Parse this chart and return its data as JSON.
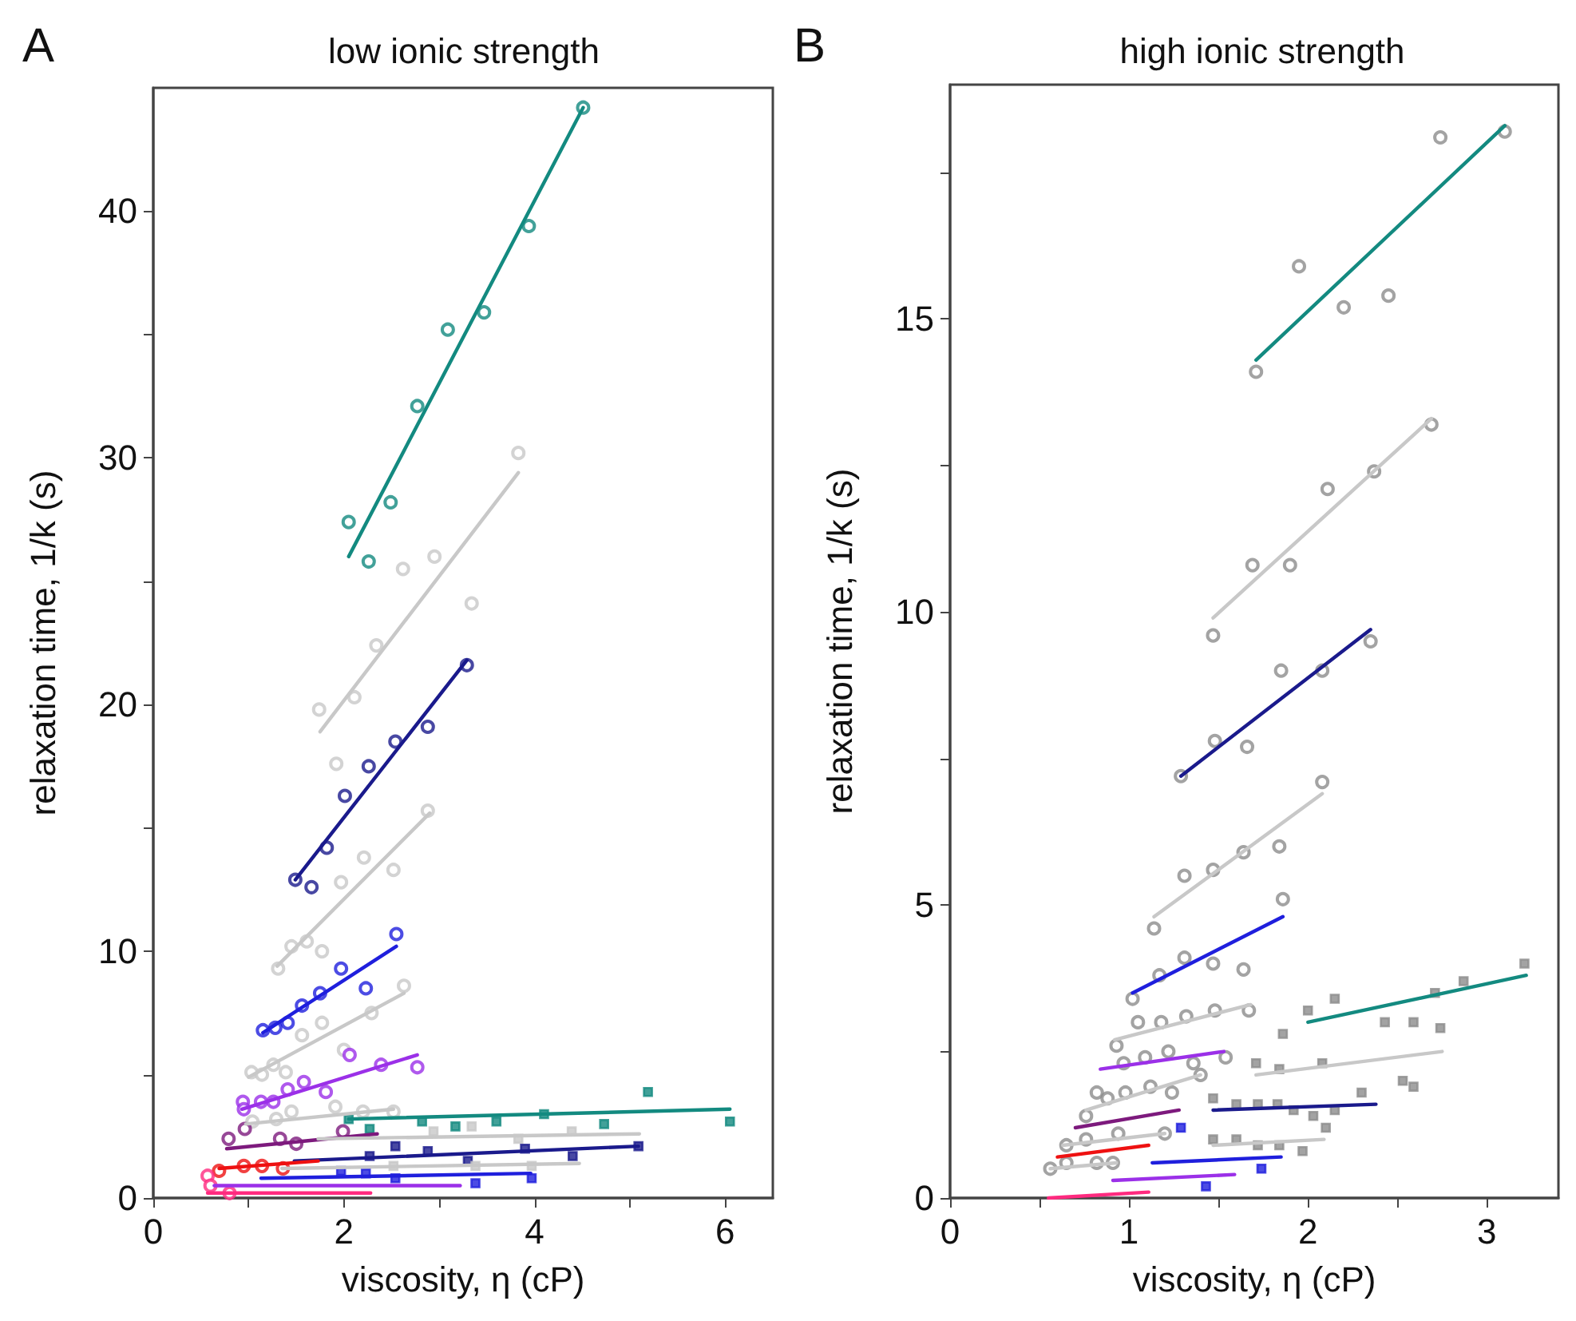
{
  "chart_data": [
    {
      "type": "scatter",
      "title": "low ionic strength",
      "xlabel": "viscosity, η (cP)",
      "ylabel": "relaxation time, 1/k (s)",
      "annotations": [
        "A"
      ],
      "marker": "circle",
      "grid": false,
      "xlim": [
        0,
        6.5
      ],
      "ylim": [
        0,
        45
      ],
      "xticks": [
        0,
        {
          "value": 1,
          "label": null
        },
        2,
        {
          "value": 3,
          "label": null
        },
        4,
        {
          "value": 5,
          "label": null
        },
        6
      ],
      "yticks": [
        0,
        {
          "value": 5,
          "label": null
        },
        10,
        {
          "value": 15,
          "label": null
        },
        20,
        {
          "value": 25,
          "label": null
        },
        30,
        {
          "value": 35,
          "label": null
        },
        40
      ],
      "series": [
        {
          "color": "#138a80",
          "x": [
            2.05,
            2.26,
            2.49,
            2.77,
            3.09,
            3.47,
            3.94,
            4.51
          ],
          "values": [
            27.4,
            25.8,
            28.2,
            32.1,
            35.2,
            35.9,
            39.4,
            44.2
          ]
        },
        {
          "type": "line",
          "marker": "none",
          "color": "#138a80",
          "x": [
            2.05,
            4.51
          ],
          "values": [
            26.0,
            44.2
          ]
        },
        {
          "color": "#c8c8c8",
          "x": [
            1.74,
            1.92,
            2.11,
            2.34,
            2.62,
            2.95,
            3.34,
            3.83
          ],
          "values": [
            19.8,
            17.6,
            20.3,
            22.4,
            25.5,
            26.0,
            24.1,
            30.2
          ]
        },
        {
          "type": "line",
          "marker": "none",
          "color": "#c8c8c8",
          "x": [
            1.75,
            3.83
          ],
          "values": [
            18.9,
            29.4
          ]
        },
        {
          "color": "#1a1a8c",
          "x": [
            1.49,
            1.66,
            1.82,
            2.01,
            2.26,
            2.54,
            2.88,
            3.29
          ],
          "values": [
            12.9,
            12.6,
            14.2,
            16.3,
            17.5,
            18.5,
            19.1,
            21.6
          ]
        },
        {
          "type": "line",
          "marker": "none",
          "color": "#1a1a8c",
          "x": [
            1.49,
            3.29
          ],
          "values": [
            12.9,
            21.8
          ]
        },
        {
          "color": "#c8c8c8",
          "x": [
            1.31,
            1.45,
            1.61,
            1.77,
            1.97,
            2.21,
            2.52,
            2.88
          ],
          "values": [
            9.3,
            10.2,
            10.4,
            10.0,
            12.8,
            13.8,
            13.3,
            15.7
          ]
        },
        {
          "type": "line",
          "marker": "none",
          "color": "#c8c8c8",
          "x": [
            1.3,
            2.9
          ],
          "values": [
            9.4,
            15.6
          ]
        },
        {
          "color": "#1f1fdd",
          "x": [
            1.15,
            1.28,
            1.41,
            1.56,
            1.75,
            1.97,
            2.23,
            2.55
          ],
          "values": [
            6.8,
            6.9,
            7.1,
            7.8,
            8.3,
            9.3,
            8.5,
            10.7
          ]
        },
        {
          "type": "line",
          "marker": "none",
          "color": "#1f1fdd",
          "x": [
            1.15,
            2.55
          ],
          "values": [
            6.7,
            10.2
          ]
        },
        {
          "color": "#c8c8c8",
          "x": [
            1.03,
            1.14,
            1.26,
            1.39,
            1.56,
            1.77,
            2.0,
            2.29,
            2.63
          ],
          "values": [
            5.1,
            5.0,
            5.4,
            5.1,
            6.6,
            7.1,
            6.0,
            7.5,
            8.6
          ]
        },
        {
          "type": "line",
          "marker": "none",
          "color": "#c8c8c8",
          "x": [
            1.0,
            2.63
          ],
          "values": [
            4.9,
            8.3
          ]
        },
        {
          "color": "#9b30e8",
          "x": [
            0.94,
            0.95,
            1.13,
            1.26,
            1.41,
            1.58,
            1.81,
            2.06,
            2.39,
            2.77
          ],
          "values": [
            3.9,
            3.6,
            3.9,
            3.9,
            4.4,
            4.7,
            4.3,
            5.8,
            5.4,
            5.3
          ]
        },
        {
          "type": "line",
          "marker": "none",
          "color": "#9b30e8",
          "x": [
            0.93,
            2.77
          ],
          "values": [
            3.6,
            5.8
          ]
        },
        {
          "color": "#c8c8c8",
          "x": [
            1.04,
            1.29,
            1.45,
            1.91,
            2.2,
            2.52
          ],
          "values": [
            3.1,
            3.2,
            3.5,
            3.7,
            3.5,
            3.5
          ]
        },
        {
          "type": "line",
          "marker": "none",
          "color": "#c8c8c8",
          "x": [
            0.97,
            2.52
          ],
          "values": [
            3.0,
            3.6
          ]
        },
        {
          "marker": "square",
          "color": "#138a80",
          "x": [
            2.05,
            2.27,
            2.82,
            3.17,
            3.6,
            4.1,
            4.73,
            5.19,
            6.05
          ],
          "values": [
            3.2,
            2.8,
            3.1,
            2.9,
            3.1,
            3.4,
            3.0,
            4.3,
            3.1
          ]
        },
        {
          "type": "line",
          "marker": "none",
          "color": "#138a80",
          "x": [
            2.05,
            6.05
          ],
          "values": [
            3.2,
            3.6
          ]
        },
        {
          "color": "#7d1a7d",
          "x": [
            0.79,
            0.96,
            1.33,
            1.5,
            1.99
          ],
          "values": [
            2.4,
            2.8,
            2.4,
            2.2,
            2.7
          ]
        },
        {
          "type": "line",
          "marker": "none",
          "color": "#7d1a7d",
          "x": [
            0.77,
            2.35
          ],
          "values": [
            2.0,
            2.6
          ]
        },
        {
          "marker": "square",
          "color": "#c8c8c8",
          "x": [
            2.94,
            3.34,
            3.83,
            4.39
          ],
          "values": [
            2.7,
            2.9,
            2.4,
            2.7
          ]
        },
        {
          "type": "line",
          "marker": "none",
          "color": "#c8c8c8",
          "x": [
            1.73,
            5.1
          ],
          "values": [
            2.4,
            2.6
          ]
        },
        {
          "marker": "square",
          "color": "#1a1a8c",
          "x": [
            2.27,
            2.54,
            2.88,
            3.3,
            3.9,
            4.4,
            5.09
          ],
          "values": [
            1.7,
            2.1,
            1.9,
            1.5,
            2.0,
            1.7,
            2.1
          ]
        },
        {
          "type": "line",
          "marker": "none",
          "color": "#1a1a8c",
          "x": [
            1.48,
            5.09
          ],
          "values": [
            1.5,
            2.1
          ]
        },
        {
          "color": "#ee1111",
          "x": [
            0.69,
            0.87,
            0.95,
            1.14,
            1.36
          ],
          "values": [
            1.1,
            null,
            1.3,
            1.3,
            1.2
          ]
        },
        {
          "type": "line",
          "marker": "none",
          "color": "#ee1111",
          "x": [
            0.69,
            1.73
          ],
          "values": [
            1.2,
            1.5
          ]
        },
        {
          "marker": "square",
          "color": "#c8c8c8",
          "x": [
            2.52,
            3.38,
            3.97
          ],
          "values": [
            1.3,
            1.3,
            1.3
          ]
        },
        {
          "type": "line",
          "marker": "none",
          "color": "#c8c8c8",
          "x": [
            1.35,
            4.47
          ],
          "values": [
            1.2,
            1.4
          ]
        },
        {
          "marker": "square",
          "color": "#1f1fdd",
          "x": [
            1.97,
            2.23,
            2.54,
            3.38,
            3.97
          ],
          "values": [
            1.1,
            1.0,
            0.8,
            0.6,
            0.8
          ]
        },
        {
          "type": "line",
          "marker": "none",
          "color": "#1f1fdd",
          "x": [
            1.13,
            3.96
          ],
          "values": [
            0.8,
            1.0
          ]
        },
        {
          "type": "line",
          "marker": "none",
          "color": "#9b30e8",
          "x": [
            0.64,
            3.22
          ],
          "values": [
            0.5,
            0.5
          ]
        },
        {
          "color": "#ff2a7f",
          "x": [
            0.57,
            0.6,
            0.7,
            0.8
          ],
          "values": [
            0.9,
            0.5,
            null,
            0.2
          ]
        },
        {
          "type": "line",
          "marker": "none",
          "color": "#ff2a7f",
          "x": [
            0.57,
            2.28
          ],
          "values": [
            0.2,
            0.2
          ]
        }
      ]
    },
    {
      "type": "scatter",
      "title": "high ionic strength",
      "xlabel": "viscosity, η (cP)",
      "ylabel": "relaxation time, 1/k (s)",
      "annotations": [
        "B"
      ],
      "marker": "circle",
      "grid": false,
      "xlim": [
        0,
        3.4
      ],
      "ylim": [
        0,
        19
      ],
      "xticks": [
        0,
        {
          "value": 0.5,
          "label": null
        },
        1,
        {
          "value": 1.5,
          "label": null
        },
        2,
        {
          "value": 2.5,
          "label": null
        },
        3
      ],
      "yticks": [
        0,
        {
          "value": 2.5,
          "label": null
        },
        5,
        {
          "value": 7.5,
          "label": null
        },
        10,
        {
          "value": 12.5,
          "label": null
        },
        15,
        {
          "value": 17.5,
          "label": null
        }
      ],
      "series": [
        {
          "color": "#8c8c8c",
          "x": [
            1.71,
            1.95,
            2.2,
            2.45,
            2.74,
            3.1
          ],
          "values": [
            14.1,
            15.9,
            15.2,
            15.4,
            18.1,
            18.2
          ]
        },
        {
          "type": "line",
          "marker": "none",
          "color": "#138a80",
          "x": [
            1.71,
            3.1
          ],
          "values": [
            14.3,
            18.3
          ]
        },
        {
          "color": "#8c8c8c",
          "x": [
            1.47,
            1.69,
            1.9,
            2.11,
            2.37,
            2.69
          ],
          "values": [
            9.6,
            10.8,
            10.8,
            12.1,
            12.4,
            13.2
          ]
        },
        {
          "type": "line",
          "marker": "none",
          "color": "#c8c8c8",
          "x": [
            1.47,
            2.69
          ],
          "values": [
            9.9,
            13.3
          ]
        },
        {
          "color": "#8c8c8c",
          "x": [
            1.29,
            1.48,
            1.66,
            1.85,
            2.08,
            2.35
          ],
          "values": [
            7.2,
            7.8,
            7.7,
            9.0,
            9.0,
            9.5
          ]
        },
        {
          "type": "line",
          "marker": "none",
          "color": "#1a1a8c",
          "x": [
            1.29,
            2.35
          ],
          "values": [
            7.2,
            9.7
          ]
        },
        {
          "color": "#8c8c8c",
          "x": [
            1.14,
            1.31,
            1.47,
            1.64,
            1.84,
            2.08
          ],
          "values": [
            4.6,
            5.5,
            5.6,
            5.9,
            6.0,
            7.1
          ]
        },
        {
          "type": "line",
          "marker": "none",
          "color": "#c8c8c8",
          "x": [
            1.14,
            2.08
          ],
          "values": [
            4.8,
            6.9
          ]
        },
        {
          "color": "#8c8c8c",
          "x": [
            1.02,
            1.17,
            1.31,
            1.47,
            1.64,
            1.86
          ],
          "values": [
            3.4,
            3.8,
            4.1,
            4.0,
            3.9,
            5.1
          ]
        },
        {
          "type": "line",
          "marker": "none",
          "color": "#1f1fdd",
          "x": [
            1.02,
            1.86
          ],
          "values": [
            3.5,
            4.8
          ]
        },
        {
          "marker": "square",
          "color": "#8c8c8c",
          "x": [
            2.0,
            2.15,
            2.43,
            2.59,
            2.71,
            2.74,
            2.87,
            3.21
          ],
          "values": [
            3.2,
            3.4,
            3.0,
            3.0,
            3.5,
            2.9,
            3.7,
            4.0
          ]
        },
        {
          "type": "line",
          "marker": "none",
          "color": "#138a80",
          "x": [
            2.0,
            3.22
          ],
          "values": [
            3.0,
            3.8
          ]
        },
        {
          "color": "#8c8c8c",
          "x": [
            0.93,
            1.05,
            1.18,
            1.32,
            1.48,
            1.67
          ],
          "values": [
            2.6,
            3.0,
            3.0,
            3.1,
            3.2,
            3.2
          ]
        },
        {
          "type": "line",
          "marker": "none",
          "color": "#c8c8c8",
          "x": [
            0.92,
            1.68
          ],
          "values": [
            2.7,
            3.3
          ]
        },
        {
          "color": "#8c8c8c",
          "x": [
            0.82,
            0.97,
            1.09,
            1.22,
            1.36,
            1.54
          ],
          "values": [
            1.8,
            2.3,
            2.4,
            2.5,
            2.3,
            2.4
          ]
        },
        {
          "type": "line",
          "marker": "none",
          "color": "#9b30e8",
          "x": [
            0.84,
            1.53
          ],
          "values": [
            2.2,
            2.5
          ]
        },
        {
          "marker": "square",
          "color": "#8c8c8c",
          "x": [
            1.71,
            1.84,
            1.86,
            2.08,
            2.3,
            2.53,
            2.59
          ],
          "values": [
            2.3,
            2.2,
            2.8,
            2.3,
            1.8,
            2.0,
            1.9
          ]
        },
        {
          "type": "line",
          "marker": "none",
          "color": "#c8c8c8",
          "x": [
            1.71,
            2.75
          ],
          "values": [
            2.1,
            2.5
          ]
        },
        {
          "marker": "square",
          "color": "#8c8c8c",
          "x": [
            1.47,
            1.6,
            1.72,
            1.83,
            1.92,
            2.03,
            2.1,
            2.15
          ],
          "values": [
            1.7,
            1.6,
            1.6,
            1.6,
            1.5,
            1.4,
            1.2,
            1.5
          ]
        },
        {
          "type": "line",
          "marker": "none",
          "color": "#1a1a8c",
          "x": [
            1.47,
            2.38
          ],
          "values": [
            1.5,
            1.6
          ]
        },
        {
          "color": "#8c8c8c",
          "x": [
            0.76,
            0.88,
            0.98,
            1.12,
            1.24,
            1.4
          ],
          "values": [
            1.4,
            1.7,
            1.8,
            1.9,
            1.8,
            2.1
          ]
        },
        {
          "type": "line",
          "marker": "none",
          "color": "#c8c8c8",
          "x": [
            0.76,
            1.4
          ],
          "values": [
            1.5,
            2.1
          ]
        },
        {
          "type": "line",
          "marker": "none",
          "color": "#7d1a7d",
          "x": [
            0.7,
            1.28
          ],
          "values": [
            1.2,
            1.5
          ]
        },
        {
          "color": "#8c8c8c",
          "x": [
            0.65,
            0.76,
            0.94,
            1.2
          ],
          "values": [
            0.9,
            1.0,
            1.1,
            1.1
          ]
        },
        {
          "type": "line",
          "marker": "none",
          "color": "#c8c8c8",
          "x": [
            0.63,
            1.2
          ],
          "values": [
            0.9,
            1.1
          ]
        },
        {
          "type": "line",
          "marker": "none",
          "color": "#ee1111",
          "x": [
            0.6,
            1.11
          ],
          "values": [
            0.7,
            0.9
          ]
        },
        {
          "color": "#8c8c8c",
          "x": [
            0.56,
            0.65,
            0.82,
            0.91
          ],
          "values": [
            0.5,
            0.6,
            0.6,
            0.6
          ]
        },
        {
          "type": "line",
          "marker": "none",
          "color": "#c8c8c8",
          "x": [
            0.56,
            0.93
          ],
          "values": [
            0.5,
            0.6
          ]
        },
        {
          "marker": "square",
          "color": "#8c8c8c",
          "x": [
            1.47,
            1.6,
            1.72,
            1.84,
            1.97
          ],
          "values": [
            1.0,
            1.0,
            0.9,
            0.9,
            0.8
          ]
        },
        {
          "type": "line",
          "marker": "none",
          "color": "#c8c8c8",
          "x": [
            1.47,
            2.09
          ],
          "values": [
            0.9,
            1.0
          ]
        },
        {
          "marker": "square",
          "color": "#1f1fdd",
          "x": [
            1.29,
            1.74,
            1.43
          ],
          "values": [
            1.2,
            0.5,
            0.2
          ]
        },
        {
          "type": "line",
          "marker": "none",
          "color": "#1f1fdd",
          "x": [
            1.13,
            1.85
          ],
          "values": [
            0.6,
            0.7
          ]
        },
        {
          "type": "line",
          "marker": "none",
          "color": "#9b30e8",
          "x": [
            0.91,
            1.59
          ],
          "values": [
            0.3,
            0.4
          ]
        },
        {
          "type": "line",
          "marker": "none",
          "color": "#ff2a7f",
          "x": [
            0.55,
            1.11
          ],
          "values": [
            0.0,
            0.1
          ]
        }
      ]
    }
  ]
}
